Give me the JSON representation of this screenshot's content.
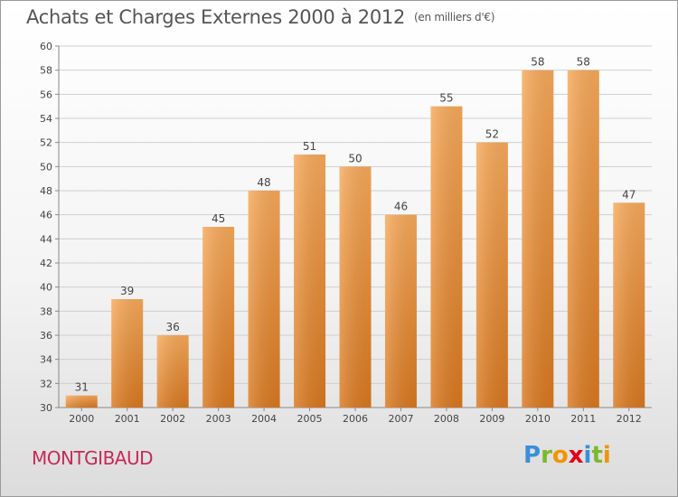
{
  "header": {
    "title": "Achats et Charges Externes 2000 à 2012",
    "unit": "(en milliers d'€)"
  },
  "commune": "MONTGIBAUD",
  "logo": {
    "parts": [
      {
        "t": "P",
        "color": "#3a8fd8"
      },
      {
        "t": "r",
        "color": "#7cb82f"
      },
      {
        "t": "o",
        "color": "#f29400"
      },
      {
        "t": "x",
        "color": "#e2001a"
      },
      {
        "t": "i",
        "color": "#3a8fd8"
      },
      {
        "t": "t",
        "color": "#7cb82f"
      },
      {
        "t": "i",
        "color": "#f29400"
      }
    ]
  },
  "colors": {
    "bar_light": "#f7a95a",
    "bar_dark": "#d9781f",
    "grid": "#cfcfcf",
    "axis_text": "#444444"
  },
  "chart_data": {
    "type": "bar",
    "title": "Achats et Charges Externes 2000 à 2012",
    "categories": [
      "2000",
      "2001",
      "2002",
      "2003",
      "2004",
      "2005",
      "2006",
      "2007",
      "2008",
      "2009",
      "2010",
      "2011",
      "2012"
    ],
    "values": [
      31,
      39,
      36,
      45,
      48,
      51,
      50,
      46,
      55,
      52,
      58,
      58,
      47
    ],
    "ylim": [
      30,
      60
    ],
    "yticks": [
      30,
      32,
      34,
      36,
      38,
      40,
      42,
      44,
      46,
      48,
      50,
      52,
      54,
      56,
      58,
      60
    ],
    "grid": true,
    "data_labels": true
  }
}
